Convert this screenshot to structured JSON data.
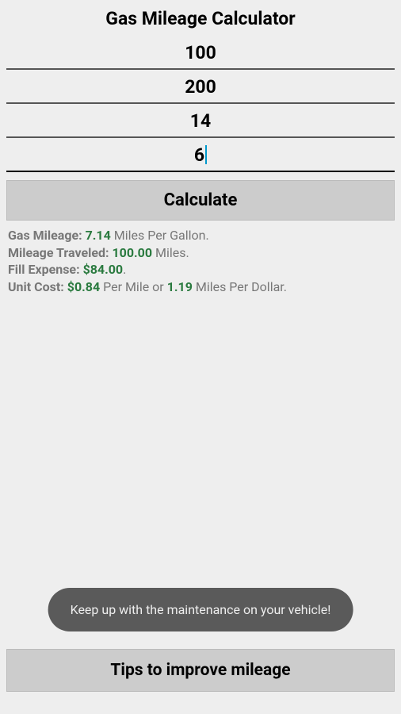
{
  "title": "Gas Mileage Calculator",
  "inputs": {
    "field1": "100",
    "field2": "200",
    "field3": "14",
    "field4": "6"
  },
  "calculate_label": "Calculate",
  "results": {
    "gas_mileage_label": "Gas Mileage: ",
    "gas_mileage_value": "7.14",
    "gas_mileage_unit": " Miles Per Gallon.",
    "mileage_traveled_label": "Mileage Traveled: ",
    "mileage_traveled_value": "100.00",
    "mileage_traveled_unit": " Miles.",
    "fill_expense_label": "Fill Expense: ",
    "fill_expense_value": "$84.00",
    "fill_expense_suffix": ".",
    "unit_cost_label": "Unit Cost: ",
    "unit_cost_value1": "$0.84",
    "unit_cost_mid": " Per Mile or ",
    "unit_cost_value2": "1.19",
    "unit_cost_suffix": " Miles Per Dollar."
  },
  "toast_message": "Keep up with the maintenance on your vehicle!",
  "tips_label": "Tips to improve mileage",
  "colors": {
    "background": "#eeeeee",
    "button_bg": "#cccccc",
    "accent_green": "#2a7a3f",
    "muted_text": "#777777",
    "toast_bg": "#5a5a5a",
    "cursor": "#0099cc"
  }
}
